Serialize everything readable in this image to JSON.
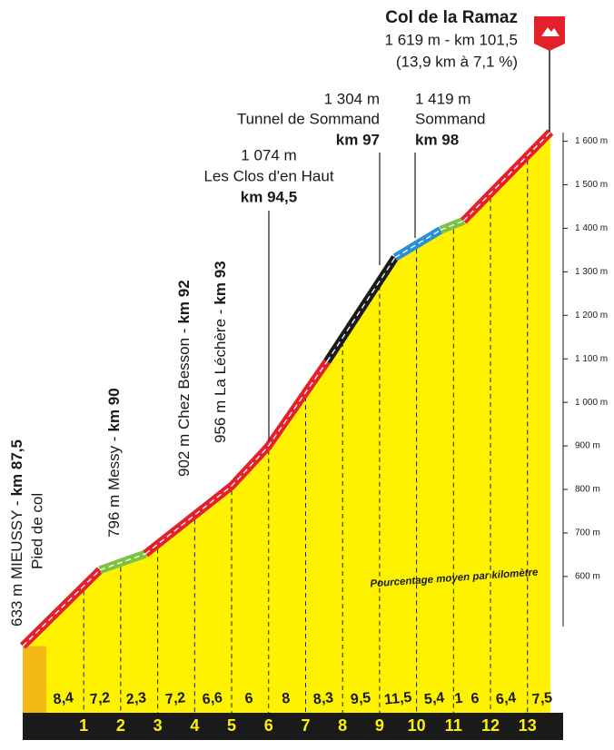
{
  "chart_data": {
    "type": "climb-profile",
    "title": "Col de la Ramaz",
    "subtitle": [
      "1 619 m - km 101,5",
      "(13,9 km à 7,1 %)"
    ],
    "caption": "Pourcentage moyen par kilomètre",
    "xlim": [
      -0.65,
      13.62
    ],
    "xticks": [
      1,
      2,
      3,
      4,
      5,
      6,
      7,
      8,
      9,
      10,
      11,
      12,
      13
    ],
    "ylim": [
      485,
      1620
    ],
    "yticks": [
      {
        "value": 600,
        "label": "600 m"
      },
      {
        "value": 700,
        "label": "700 m"
      },
      {
        "value": 800,
        "label": "800 m"
      },
      {
        "value": 900,
        "label": "900 m"
      },
      {
        "value": 1000,
        "label": "1 000 m"
      },
      {
        "value": 1100,
        "label": "1 100 m"
      },
      {
        "value": 1200,
        "label": "1 200 m"
      },
      {
        "value": 1300,
        "label": "1 300 m"
      },
      {
        "value": 1400,
        "label": "1 400 m"
      },
      {
        "value": 1500,
        "label": "1 500 m"
      },
      {
        "value": 1600,
        "label": "1 600 m"
      }
    ],
    "series": [
      {
        "color": "#e4202a",
        "x": [
          -0.65,
          1.44
        ],
        "values": [
          440,
          615
        ]
      },
      {
        "color": "#7dc242",
        "x": [
          1.44,
          2.67
        ],
        "values": [
          615,
          652
        ]
      },
      {
        "color": "#e4202a",
        "x": [
          2.67,
          5.0,
          5.98,
          7.58
        ],
        "values": [
          652,
          808,
          898,
          1094
        ]
      },
      {
        "color": "#1a1a1a",
        "x": [
          7.58,
          9.42
        ],
        "values": [
          1094,
          1333
        ]
      },
      {
        "color": "#2b8fd6",
        "x": [
          9.42,
          10.65
        ],
        "values": [
          1333,
          1396
        ]
      },
      {
        "color": "#7dc242",
        "x": [
          10.65,
          11.27
        ],
        "values": [
          1396,
          1417
        ]
      },
      {
        "color": "#e4202a",
        "x": [
          11.27,
          13.62
        ],
        "values": [
          1417,
          1621
        ]
      }
    ],
    "gradients": {
      "x": [
        0.45,
        1.44,
        2.42,
        3.48,
        4.48,
        5.47,
        6.47,
        7.48,
        8.49,
        9.5,
        10.48,
        11.14,
        11.58,
        12.42,
        13.4
      ],
      "values": [
        8.4,
        7.2,
        2.3,
        7.2,
        6.6,
        6,
        8,
        8.3,
        9.5,
        11.5,
        5.4,
        1,
        6,
        6.4,
        7.5
      ],
      "value_labels": [
        "8,4",
        "7,2",
        "2,3",
        "7,2",
        "6,6",
        "6",
        "8",
        "8,3",
        "9,5",
        "11,5",
        "5,4",
        "1",
        "6",
        "6,4",
        "7,5"
      ]
    },
    "annotations": [
      {
        "text": [
          "1 304 m",
          "Tunnel de Sommand",
          "km 97"
        ]
      },
      {
        "text": [
          "1 419 m",
          "Sommand",
          "km 98"
        ]
      },
      {
        "text": [
          "1 074 m",
          "Les Clos d'en Haut",
          "km 94,5"
        ]
      },
      {
        "text": [
          "956 m La Léchère -",
          "km 93"
        ]
      },
      {
        "text": [
          "902 m Chez Besson -",
          "km 92"
        ]
      },
      {
        "text": [
          "796 m  Messy -",
          "km 90"
        ]
      },
      {
        "text": [
          "633 m MIEUSSY -",
          "km 87,5",
          "Pied de col"
        ]
      }
    ]
  }
}
